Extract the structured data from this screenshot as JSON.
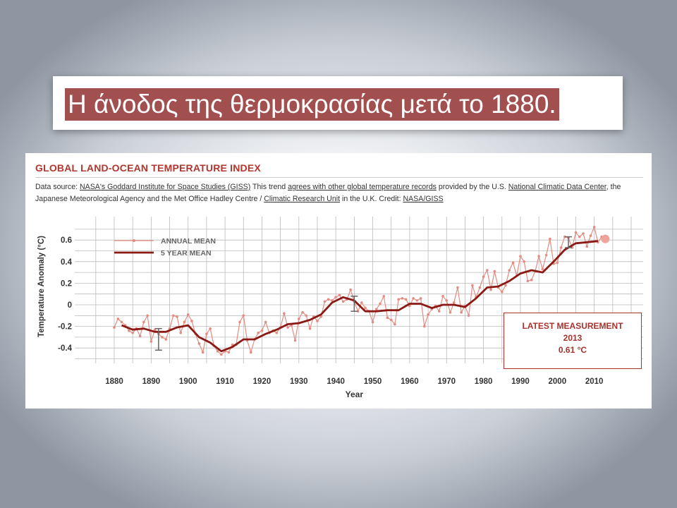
{
  "slide": {
    "title": "Η άνοδος της θερμοκρασίας μετά το 1880."
  },
  "header": {
    "title": "GLOBAL LAND-OCEAN TEMPERATURE INDEX",
    "source_prefix": "Data source: ",
    "source_link_giss": "NASA's Goddard Institute for Space Studies (GISS)",
    "source_mid1": " This trend ",
    "source_link_agrees": "agrees with other global temperature records",
    "source_mid2": " provided by the U.S. ",
    "source_link_ncdc": "National Climatic Data Center",
    "source_mid3": ", the Japanese Meteorological Agency and the Met Office Hadley Centre / ",
    "source_link_cru": "Climatic Research Unit",
    "source_mid4": " in the U.K. Credit: ",
    "source_link_credit": "NASA/GISS"
  },
  "latest": {
    "heading": "LATEST MEASUREMENT",
    "year": "2013",
    "value": "0.61 °C"
  },
  "colors": {
    "annual": "#e58c82",
    "five_year": "#8b1a14",
    "grid": "#bbbbbb",
    "accent": "#b1362e",
    "error_bar": "#666666"
  },
  "chart_data": {
    "type": "line",
    "title": "GLOBAL LAND-OCEAN TEMPERATURE INDEX",
    "xlabel": "Year",
    "ylabel": "Temperature Anomaly (°C)",
    "xlim": [
      1880,
      2010
    ],
    "ylim": [
      -0.4,
      0.6
    ],
    "x_ticks": [
      1880,
      1890,
      1900,
      1910,
      1920,
      1930,
      1940,
      1950,
      1960,
      1970,
      1980,
      1990,
      2000,
      2010
    ],
    "y_ticks": [
      {
        "value": 0.6,
        "label": "0.6"
      },
      {
        "value": 0.4,
        "label": "0.4"
      },
      {
        "value": 0.2,
        "label": "0.2"
      },
      {
        "value": 0,
        "label": "0"
      },
      {
        "value": -0.2,
        "label": "-0.2"
      },
      {
        "value": -0.4,
        "label": "-0.4"
      }
    ],
    "grid": true,
    "legend": "top-left",
    "series": [
      {
        "name": "ANNUAL MEAN",
        "x": [
          1880,
          1881,
          1882,
          1883,
          1884,
          1885,
          1886,
          1887,
          1888,
          1889,
          1890,
          1891,
          1892,
          1893,
          1894,
          1895,
          1896,
          1897,
          1898,
          1899,
          1900,
          1901,
          1902,
          1903,
          1904,
          1905,
          1906,
          1907,
          1908,
          1909,
          1910,
          1911,
          1912,
          1913,
          1914,
          1915,
          1916,
          1917,
          1918,
          1919,
          1920,
          1921,
          1922,
          1923,
          1924,
          1925,
          1926,
          1927,
          1928,
          1929,
          1930,
          1931,
          1932,
          1933,
          1934,
          1935,
          1936,
          1937,
          1938,
          1939,
          1940,
          1941,
          1942,
          1943,
          1944,
          1945,
          1946,
          1947,
          1948,
          1949,
          1950,
          1951,
          1952,
          1953,
          1954,
          1955,
          1956,
          1957,
          1958,
          1959,
          1960,
          1961,
          1962,
          1963,
          1964,
          1965,
          1966,
          1967,
          1968,
          1969,
          1970,
          1971,
          1972,
          1973,
          1974,
          1975,
          1976,
          1977,
          1978,
          1979,
          1980,
          1981,
          1982,
          1983,
          1984,
          1985,
          1986,
          1987,
          1988,
          1989,
          1990,
          1991,
          1992,
          1993,
          1994,
          1995,
          1996,
          1997,
          1998,
          1999,
          2000,
          2001,
          2002,
          2003,
          2004,
          2005,
          2006,
          2007,
          2008,
          2009,
          2010,
          2011,
          2012,
          2013
        ],
        "values": [
          -0.21,
          -0.13,
          -0.16,
          -0.19,
          -0.24,
          -0.26,
          -0.22,
          -0.29,
          -0.16,
          -0.1,
          -0.34,
          -0.23,
          -0.27,
          -0.3,
          -0.32,
          -0.22,
          -0.1,
          -0.11,
          -0.26,
          -0.16,
          -0.09,
          -0.15,
          -0.27,
          -0.36,
          -0.44,
          -0.27,
          -0.22,
          -0.38,
          -0.43,
          -0.46,
          -0.43,
          -0.44,
          -0.37,
          -0.37,
          -0.16,
          -0.1,
          -0.33,
          -0.44,
          -0.32,
          -0.26,
          -0.24,
          -0.16,
          -0.26,
          -0.24,
          -0.26,
          -0.21,
          -0.08,
          -0.21,
          -0.19,
          -0.33,
          -0.13,
          -0.07,
          -0.1,
          -0.22,
          -0.11,
          -0.15,
          -0.11,
          0.03,
          0.05,
          0.04,
          0.07,
          0.09,
          0.03,
          0.05,
          0.14,
          0.03,
          -0.06,
          0.02,
          -0.03,
          -0.06,
          -0.16,
          -0.04,
          0.01,
          0.08,
          -0.12,
          -0.14,
          -0.18,
          0.05,
          0.06,
          0.05,
          -0.01,
          0.06,
          0.04,
          0.06,
          -0.2,
          -0.09,
          -0.04,
          -0.01,
          -0.06,
          0.08,
          0.04,
          -0.07,
          0.02,
          0.16,
          -0.07,
          -0.01,
          -0.1,
          0.18,
          0.07,
          0.16,
          0.26,
          0.32,
          0.14,
          0.31,
          0.16,
          0.12,
          0.18,
          0.32,
          0.39,
          0.27,
          0.45,
          0.4,
          0.22,
          0.23,
          0.31,
          0.45,
          0.33,
          0.46,
          0.61,
          0.38,
          0.39,
          0.53,
          0.63,
          0.62,
          0.53,
          0.67,
          0.63,
          0.66,
          0.54,
          0.64,
          0.72,
          0.58,
          0.63,
          0.61
        ]
      },
      {
        "name": "5 YEAR MEAN",
        "x": [
          1882,
          1885,
          1888,
          1891,
          1894,
          1897,
          1900,
          1903,
          1906,
          1909,
          1912,
          1915,
          1918,
          1921,
          1924,
          1927,
          1930,
          1933,
          1936,
          1939,
          1942,
          1945,
          1948,
          1951,
          1954,
          1957,
          1960,
          1963,
          1966,
          1969,
          1972,
          1975,
          1978,
          1981,
          1984,
          1987,
          1990,
          1993,
          1996,
          1999,
          2002,
          2005,
          2008,
          2011
        ],
        "values": [
          -0.19,
          -0.23,
          -0.22,
          -0.25,
          -0.25,
          -0.21,
          -0.19,
          -0.3,
          -0.35,
          -0.43,
          -0.39,
          -0.32,
          -0.32,
          -0.27,
          -0.23,
          -0.18,
          -0.17,
          -0.14,
          -0.09,
          0.02,
          0.07,
          0.04,
          -0.06,
          -0.06,
          -0.05,
          -0.05,
          0.01,
          0.01,
          -0.03,
          0.0,
          0.0,
          -0.02,
          0.06,
          0.16,
          0.17,
          0.22,
          0.29,
          0.32,
          0.3,
          0.4,
          0.51,
          0.57,
          0.58,
          0.59
        ]
      }
    ],
    "error_bars": [
      {
        "x": 1892,
        "low": -0.42,
        "high": -0.22
      },
      {
        "x": 1945,
        "low": -0.06,
        "high": 0.08
      },
      {
        "x": 2003,
        "low": 0.53,
        "high": 0.63
      }
    ],
    "highlight_point": {
      "x": 2013,
      "y": 0.61
    }
  }
}
